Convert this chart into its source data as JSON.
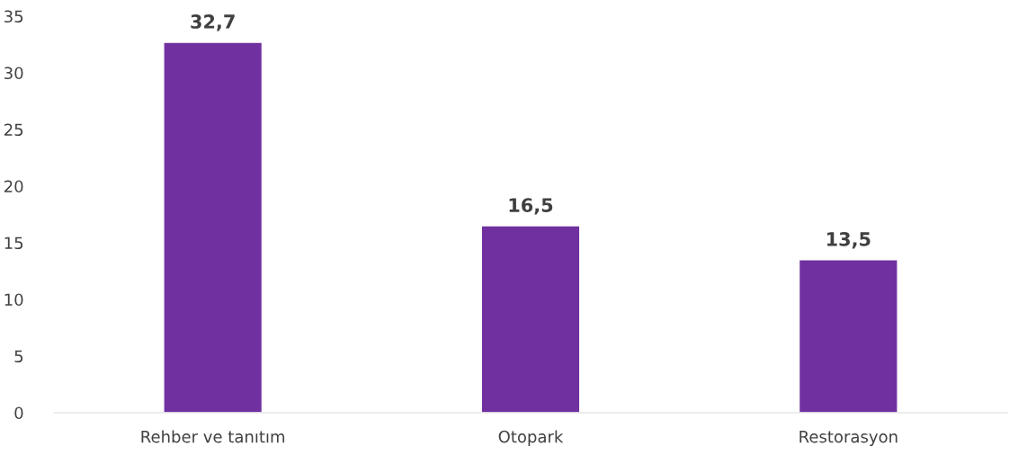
{
  "chart_data": {
    "type": "bar",
    "categories": [
      "Rehber ve tanıtım",
      "Otopark",
      "Restorasyon"
    ],
    "values": [
      32.7,
      16.5,
      13.5
    ],
    "color": "#7030a0",
    "value_labels": [
      "32,7",
      "16,5",
      "13,5"
    ],
    "ylim": [
      0,
      35
    ],
    "yticks": [
      0,
      5,
      10,
      15,
      20,
      25,
      30,
      35
    ],
    "grid": false,
    "legend": false
  }
}
